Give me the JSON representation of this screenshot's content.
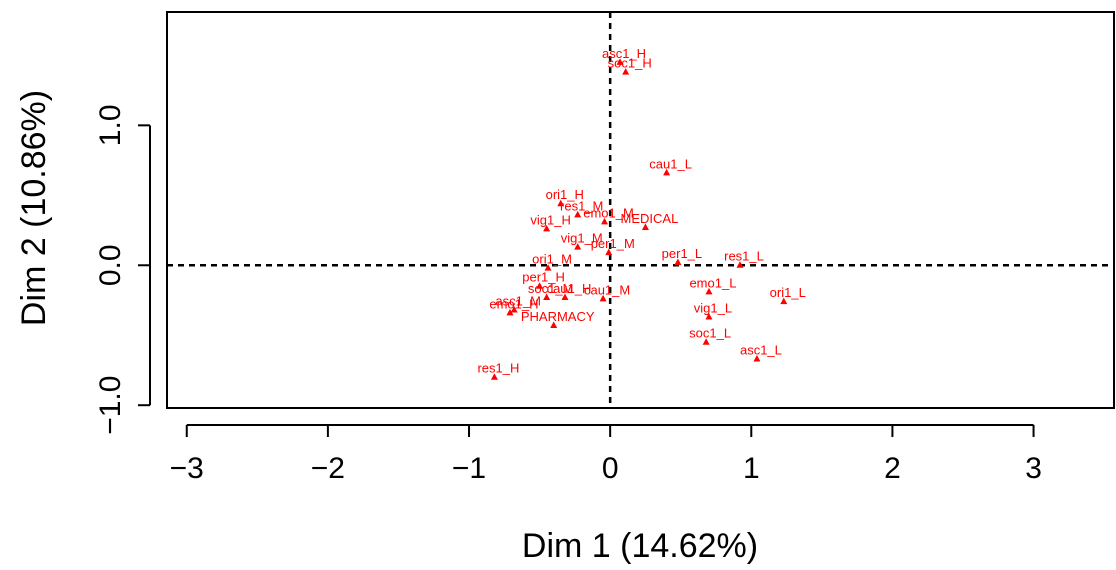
{
  "chart_data": {
    "type": "scatter",
    "xlabel": "Dim 1 (14.62%)",
    "ylabel": "Dim 2 (10.86%)",
    "xlim": [
      -3.14,
      3.57
    ],
    "ylim": [
      -1.02,
      1.81
    ],
    "xticks": [
      {
        "value": -3,
        "label": "−3"
      },
      {
        "value": -2,
        "label": "−2"
      },
      {
        "value": -1,
        "label": "−1"
      },
      0,
      1,
      2,
      3
    ],
    "yticks": [
      {
        "value": -1,
        "label": "−1.0"
      },
      {
        "value": 0,
        "label": "0.0"
      },
      {
        "value": 1,
        "label": "1.0"
      }
    ],
    "reference_x": 0,
    "reference_y": 0,
    "labels": [
      "asc1_H",
      "soc1_H",
      "cau1_L",
      "ori1_H",
      "res1_M",
      "emo1_M",
      "vig1_H",
      "MEDICAL",
      "vig1_M",
      "per1_M",
      "per1_L",
      "res1_L",
      "per1_H",
      "ori1_M",
      "cau1_H",
      "soc1_M",
      "cau1_M",
      "asc1_M",
      "emo1_H",
      "PHARMACY",
      "emo1_L",
      "ori1_L",
      "vig1_L",
      "soc1_L",
      "asc1_L",
      "res1_H"
    ],
    "x": [
      0.07,
      0.11,
      0.4,
      -0.35,
      -0.23,
      -0.04,
      -0.45,
      0.25,
      -0.23,
      -0.01,
      0.48,
      0.92,
      -0.5,
      -0.44,
      -0.32,
      -0.45,
      -0.05,
      -0.68,
      -0.71,
      -0.4,
      0.7,
      1.23,
      0.7,
      0.68,
      1.04,
      -0.82
    ],
    "series": [
      {
        "color": "#ff0000",
        "values": [
          1.45,
          1.38,
          0.66,
          0.44,
          0.36,
          0.31,
          0.26,
          0.27,
          0.13,
          0.09,
          0.02,
          0.0,
          -0.15,
          -0.02,
          -0.23,
          -0.23,
          -0.24,
          -0.32,
          -0.34,
          -0.43,
          -0.19,
          -0.26,
          -0.37,
          -0.55,
          -0.67,
          -0.8
        ]
      }
    ]
  }
}
